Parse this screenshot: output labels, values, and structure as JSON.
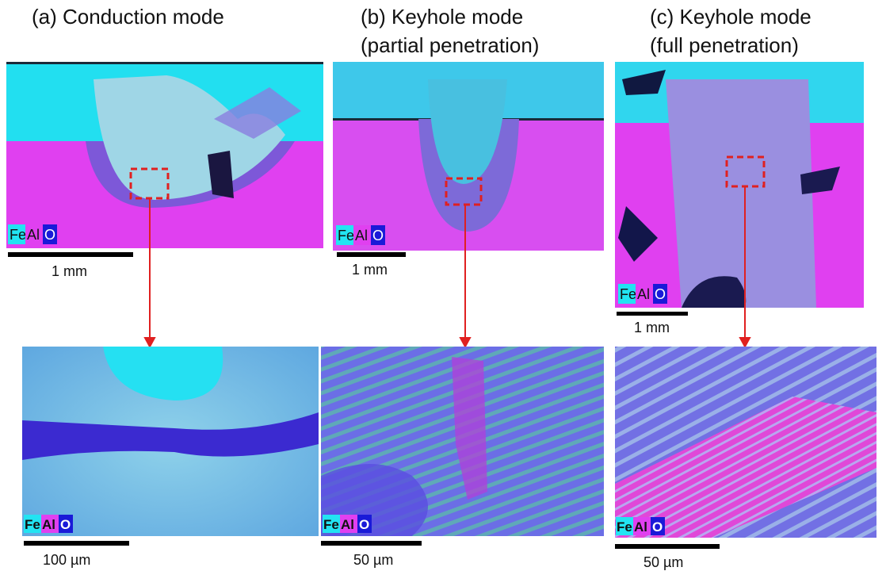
{
  "panels": [
    {
      "title_lines": [
        "(a) Conduction mode"
      ],
      "top_scale": "1 mm",
      "bottom_scale": "100 µm"
    },
    {
      "title_lines": [
        "(b) Keyhole mode",
        "(partial penetration)"
      ],
      "top_scale": "1 mm",
      "bottom_scale": "50 µm"
    },
    {
      "title_lines": [
        "(c) Keyhole mode",
        "(full penetration)"
      ],
      "top_scale": "1 mm",
      "bottom_scale": "50 µm"
    }
  ],
  "legend": [
    "Fe",
    "Al",
    "O"
  ]
}
